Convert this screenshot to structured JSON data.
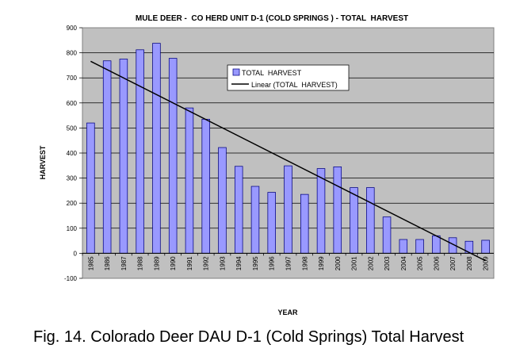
{
  "chart_data": {
    "type": "bar",
    "title": "MULE DEER -  CO HERD UNIT D-1 (COLD SPRINGS ) - TOTAL  HARVEST",
    "xlabel": "YEAR",
    "ylabel": "HARVEST",
    "ylim": [
      -100,
      900
    ],
    "yticks": [
      "-100",
      "0",
      "100",
      "200",
      "300",
      "400",
      "500",
      "600",
      "700",
      "800",
      "900"
    ],
    "grid": true,
    "legend_position": "top-center",
    "categories": [
      "1985",
      "1986",
      "1987",
      "1988",
      "1989",
      "1990",
      "1991",
      "1992",
      "1993",
      "1994",
      "1995",
      "1996",
      "1997",
      "1998",
      "1999",
      "2000",
      "2001",
      "2002",
      "2003",
      "2004",
      "2005",
      "2006",
      "2007",
      "2008",
      "2009"
    ],
    "series": [
      {
        "name": "TOTAL  HARVEST",
        "values": [
          520,
          768,
          775,
          812,
          838,
          778,
          580,
          535,
          422,
          347,
          267,
          243,
          349,
          235,
          338,
          345,
          262,
          262,
          145,
          55,
          55,
          70,
          62,
          48,
          52
        ]
      }
    ],
    "trendline": {
      "name": "Linear (TOTAL  HARVEST)",
      "start": 766,
      "end": -30
    },
    "colors": {
      "plot_bg": "#c0c0c0",
      "bar_fill": "#9999ff",
      "bar_stroke": "#000080",
      "trend": "#000000"
    }
  },
  "caption": "Fig. 14.  Colorado Deer DAU D-1 (Cold Springs) Total Harvest"
}
